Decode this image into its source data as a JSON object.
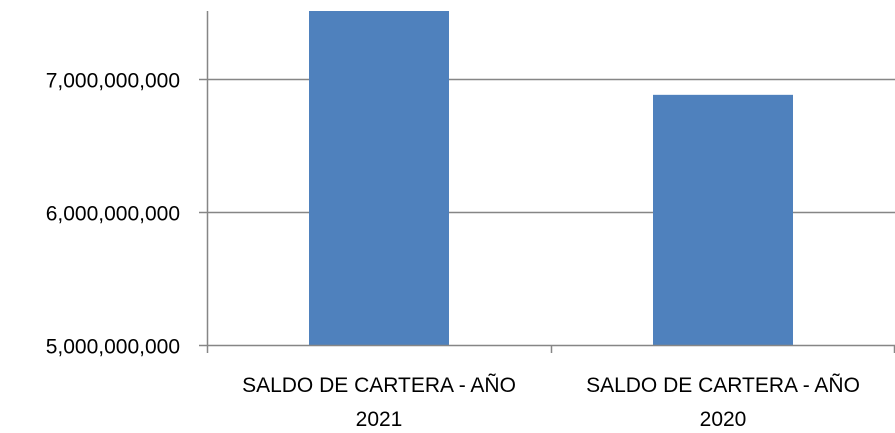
{
  "chart_data": {
    "type": "bar",
    "categories": [
      [
        "SALDO DE CARTERA - AÑO",
        "2021"
      ],
      [
        "SALDO DE CARTERA - AÑO",
        "2020"
      ]
    ],
    "values": [
      7510000000,
      6880000000
    ],
    "yticks": [
      5000000000,
      6000000000,
      7000000000
    ],
    "ytick_labels": [
      "5,000,000,000",
      "6,000,000,000",
      "7,000,000,000"
    ],
    "ylim": [
      5000000000,
      7510000000
    ],
    "grid": true,
    "legend": "none",
    "colors": {
      "bar": "#4f81bd",
      "axis": "#868686",
      "grid": "#868686"
    }
  }
}
